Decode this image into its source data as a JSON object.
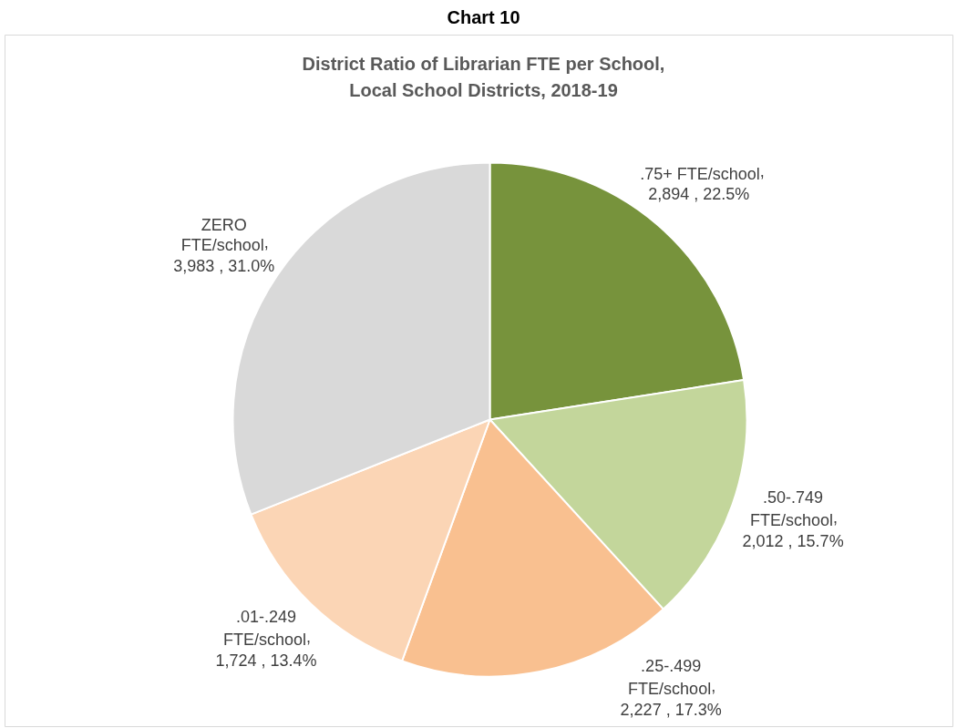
{
  "chart_data": {
    "type": "pie",
    "title": "Chart 10",
    "subtitle": "District Ratio of Librarian FTE per School,\nLocal School Districts, 2018-19",
    "categories": [
      ".75+ FTE/school",
      ".50-.749\nFTE/school",
      ".25-.499\nFTE/school",
      ".01-.249\nFTE/school",
      "ZERO\nFTE/school"
    ],
    "values": [
      2894,
      2012,
      2227,
      1724,
      3983
    ],
    "value_labels": [
      "2,894 , 22.5%",
      "2,012 , 15.7%",
      "2,227 , 17.3%",
      "1,724 , 13.4%",
      "3,983 , 31.0%"
    ],
    "colors": [
      "#77933c",
      "#c3d69b",
      "#f9c090",
      "#fbd5b5",
      "#d9d9d9"
    ],
    "annotations": [
      ","
    ]
  }
}
